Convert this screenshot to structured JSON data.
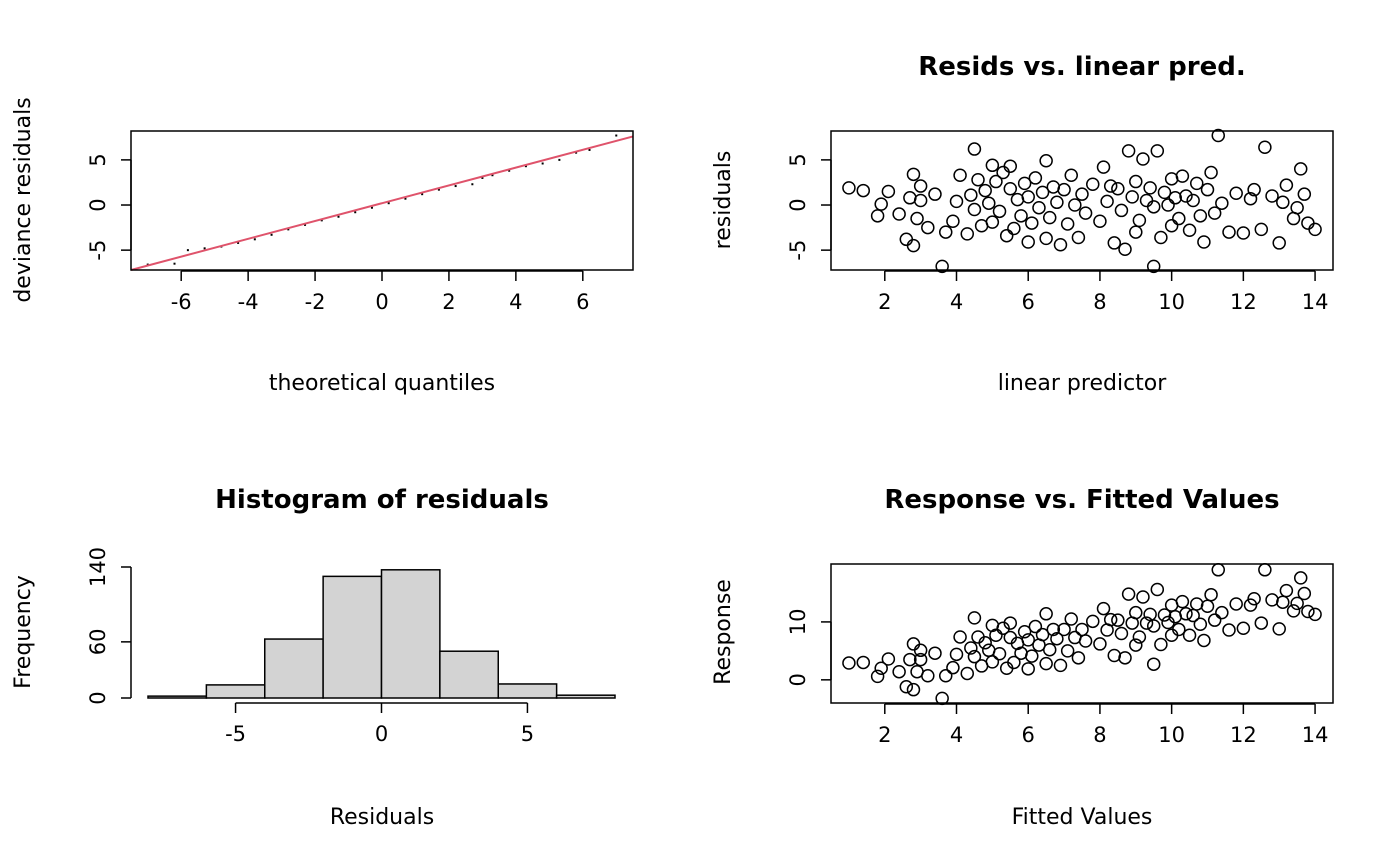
{
  "chart_data": [
    {
      "id": "qq",
      "type": "scatter",
      "subtype": "qq-plot",
      "title": "",
      "xlabel": "theoretical quantiles",
      "ylabel": "deviance residuals",
      "xlim": [
        -7.5,
        7.5
      ],
      "ylim": [
        -7.2,
        8.2
      ],
      "xticks": [
        -6,
        -4,
        -2,
        0,
        2,
        4,
        6
      ],
      "xtick_labels": [
        "-6",
        "-4",
        "-2",
        "0",
        "2",
        "4",
        "6"
      ],
      "yticks": [
        -5,
        0,
        5
      ],
      "ytick_labels": [
        "-5",
        "0",
        "5"
      ],
      "reference_line": {
        "x": [
          -7.5,
          7.5
        ],
        "y": [
          -7.2,
          7.6
        ],
        "color": "#DF536B"
      },
      "points": {
        "x": [
          -7.0,
          -6.2,
          -5.8,
          -5.3,
          -4.8,
          -4.3,
          -3.8,
          -3.3,
          -2.8,
          -2.3,
          -1.8,
          -1.3,
          -0.8,
          -0.3,
          0.2,
          0.7,
          1.2,
          1.7,
          2.2,
          2.7,
          3.0,
          3.3,
          3.8,
          4.3,
          4.8,
          5.3,
          5.8,
          6.2,
          7.0
        ],
        "y": [
          -6.6,
          -6.5,
          -5.0,
          -4.8,
          -4.6,
          -4.2,
          -3.8,
          -3.3,
          -2.7,
          -2.2,
          -1.7,
          -1.3,
          -0.8,
          -0.3,
          0.2,
          0.7,
          1.2,
          1.7,
          2.1,
          2.3,
          3.0,
          3.3,
          3.8,
          4.3,
          4.6,
          5.0,
          5.8,
          6.1,
          7.7
        ]
      }
    },
    {
      "id": "resid-vs-linpred",
      "type": "scatter",
      "title": "Resids vs. linear pred.",
      "xlabel": "linear predictor",
      "ylabel": "residuals",
      "xlim": [
        0.5,
        14.5
      ],
      "ylim": [
        -7.2,
        8.2
      ],
      "xticks": [
        2,
        4,
        6,
        8,
        10,
        12,
        14
      ],
      "xtick_labels": [
        "2",
        "4",
        "6",
        "8",
        "10",
        "12",
        "14"
      ],
      "yticks": [
        -5,
        0,
        5
      ],
      "ytick_labels": [
        "-5",
        "0",
        "5"
      ],
      "x": [
        1.0,
        1.4,
        1.8,
        1.9,
        2.1,
        2.4,
        2.6,
        2.7,
        2.8,
        2.8,
        2.9,
        3.0,
        3.0,
        3.2,
        3.4,
        3.6,
        3.7,
        3.9,
        4.0,
        4.1,
        4.3,
        4.4,
        4.5,
        4.5,
        4.6,
        4.7,
        4.8,
        4.9,
        5.0,
        5.0,
        5.1,
        5.2,
        5.3,
        5.4,
        5.5,
        5.5,
        5.6,
        5.7,
        5.8,
        5.9,
        6.0,
        6.0,
        6.1,
        6.2,
        6.3,
        6.4,
        6.5,
        6.5,
        6.6,
        6.7,
        6.8,
        6.9,
        7.0,
        7.1,
        7.2,
        7.3,
        7.4,
        7.5,
        7.6,
        7.8,
        8.0,
        8.1,
        8.2,
        8.3,
        8.4,
        8.5,
        8.6,
        8.7,
        8.8,
        8.9,
        9.0,
        9.0,
        9.1,
        9.2,
        9.3,
        9.4,
        9.5,
        9.5,
        9.6,
        9.7,
        9.8,
        9.9,
        10.0,
        10.0,
        10.1,
        10.2,
        10.3,
        10.4,
        10.5,
        10.6,
        10.7,
        10.8,
        10.9,
        11.0,
        11.1,
        11.2,
        11.3,
        11.4,
        11.6,
        11.8,
        12.0,
        12.2,
        12.3,
        12.5,
        12.6,
        12.8,
        13.0,
        13.1,
        13.2,
        13.4,
        13.5,
        13.6,
        13.7,
        13.8,
        14.0
      ],
      "y": [
        1.9,
        1.6,
        -1.2,
        0.1,
        1.5,
        -1.0,
        -3.8,
        0.8,
        3.4,
        -4.5,
        -1.5,
        2.1,
        0.5,
        -2.5,
        1.2,
        -6.8,
        -3.0,
        -1.8,
        0.4,
        3.3,
        -3.2,
        1.1,
        -0.5,
        6.2,
        2.8,
        -2.3,
        1.6,
        0.2,
        4.4,
        -1.9,
        2.6,
        -0.7,
        3.6,
        -3.4,
        1.8,
        4.3,
        -2.6,
        0.6,
        -1.2,
        2.4,
        -4.1,
        0.9,
        -2.0,
        3.0,
        -0.3,
        1.4,
        4.9,
        -3.7,
        -1.4,
        2.0,
        0.3,
        -4.4,
        1.7,
        -2.1,
        3.3,
        0.0,
        -3.6,
        1.2,
        -0.9,
        2.3,
        -1.8,
        4.2,
        0.4,
        2.1,
        -4.2,
        1.8,
        -0.6,
        -4.9,
        6.0,
        0.9,
        -3.0,
        2.6,
        -1.7,
        5.1,
        0.5,
        1.9,
        -6.8,
        -0.2,
        6.0,
        -3.6,
        1.4,
        0.0,
        2.9,
        -2.3,
        0.8,
        -1.5,
        3.2,
        1.0,
        -2.8,
        0.5,
        2.4,
        -1.2,
        -4.1,
        1.7,
        3.6,
        -0.9,
        7.7,
        0.2,
        -3.0,
        1.3,
        -3.1,
        0.7,
        1.7,
        -2.7,
        6.4,
        1.0,
        -4.2,
        0.3,
        2.2,
        -1.5,
        -0.3,
        4.0,
        1.2,
        -2.0,
        -2.7
      ]
    },
    {
      "id": "histogram",
      "type": "bar",
      "subtype": "histogram",
      "title": "Histogram of residuals",
      "xlabel": "Residuals",
      "ylabel": "Frequency",
      "bin_edges": [
        -8,
        -6,
        -4,
        -2,
        0,
        2,
        4,
        6,
        8
      ],
      "values": [
        2,
        14,
        63,
        130,
        137,
        50,
        15,
        3
      ],
      "xlim": [
        -8,
        8
      ],
      "ylim": [
        0,
        140
      ],
      "xticks": [
        -5,
        0,
        5
      ],
      "xtick_labels": [
        "-5",
        "0",
        "5"
      ],
      "yticks": [
        0,
        60,
        140
      ],
      "ytick_labels": [
        "0",
        "60",
        "140"
      ],
      "bar_fill": "#D3D3D3"
    },
    {
      "id": "response-vs-fitted",
      "type": "scatter",
      "title": "Response vs. Fitted Values",
      "xlabel": "Fitted Values",
      "ylabel": "Response",
      "xlim": [
        0.5,
        14.5
      ],
      "ylim": [
        -4,
        20
      ],
      "xticks": [
        2,
        4,
        6,
        8,
        10,
        12,
        14
      ],
      "xtick_labels": [
        "2",
        "4",
        "6",
        "8",
        "10",
        "12",
        "14"
      ],
      "yticks": [
        0,
        10
      ],
      "ytick_labels": [
        "0",
        "10"
      ],
      "x": [
        1.0,
        1.4,
        1.8,
        1.9,
        2.1,
        2.4,
        2.6,
        2.7,
        2.8,
        2.8,
        2.9,
        3.0,
        3.0,
        3.2,
        3.4,
        3.6,
        3.7,
        3.9,
        4.0,
        4.1,
        4.3,
        4.4,
        4.5,
        4.5,
        4.6,
        4.7,
        4.8,
        4.9,
        5.0,
        5.0,
        5.1,
        5.2,
        5.3,
        5.4,
        5.5,
        5.5,
        5.6,
        5.7,
        5.8,
        5.9,
        6.0,
        6.0,
        6.1,
        6.2,
        6.3,
        6.4,
        6.5,
        6.5,
        6.6,
        6.7,
        6.8,
        6.9,
        7.0,
        7.1,
        7.2,
        7.3,
        7.4,
        7.5,
        7.6,
        7.8,
        8.0,
        8.1,
        8.2,
        8.3,
        8.4,
        8.5,
        8.6,
        8.7,
        8.8,
        8.9,
        9.0,
        9.0,
        9.1,
        9.2,
        9.3,
        9.4,
        9.5,
        9.5,
        9.6,
        9.7,
        9.8,
        9.9,
        10.0,
        10.0,
        10.1,
        10.2,
        10.3,
        10.4,
        10.5,
        10.6,
        10.7,
        10.8,
        10.9,
        11.0,
        11.1,
        11.2,
        11.3,
        11.4,
        11.6,
        11.8,
        12.0,
        12.2,
        12.3,
        12.5,
        12.6,
        12.8,
        13.0,
        13.1,
        13.2,
        13.4,
        13.5,
        13.6,
        13.7,
        13.8,
        14.0
      ],
      "y": [
        2.9,
        3.0,
        0.6,
        2.0,
        3.6,
        1.4,
        -1.2,
        3.5,
        6.2,
        -1.7,
        1.4,
        5.1,
        3.5,
        0.7,
        4.6,
        -3.2,
        0.7,
        2.1,
        4.4,
        7.4,
        1.1,
        5.5,
        4.0,
        10.7,
        7.4,
        2.4,
        6.4,
        5.1,
        9.4,
        3.1,
        7.7,
        4.5,
        8.9,
        2.0,
        7.3,
        9.8,
        3.0,
        6.3,
        4.6,
        8.3,
        1.9,
        6.9,
        4.1,
        9.2,
        6.0,
        7.8,
        11.4,
        2.8,
        5.2,
        8.7,
        7.1,
        2.5,
        8.7,
        5.0,
        10.5,
        7.3,
        3.8,
        8.7,
        6.7,
        10.1,
        6.2,
        12.3,
        8.6,
        10.4,
        4.2,
        10.3,
        8.0,
        3.8,
        14.8,
        9.8,
        6.0,
        11.6,
        7.4,
        14.3,
        9.8,
        11.3,
        2.7,
        9.3,
        15.6,
        6.1,
        11.2,
        9.9,
        12.9,
        7.7,
        10.9,
        8.7,
        13.5,
        11.4,
        7.7,
        11.1,
        13.1,
        9.6,
        6.8,
        12.7,
        14.7,
        10.3,
        19.0,
        11.6,
        8.6,
        13.1,
        8.9,
        12.9,
        14.0,
        9.8,
        19.0,
        13.8,
        8.8,
        13.4,
        15.4,
        11.9,
        13.2,
        17.6,
        14.9,
        11.8,
        11.3
      ]
    }
  ]
}
